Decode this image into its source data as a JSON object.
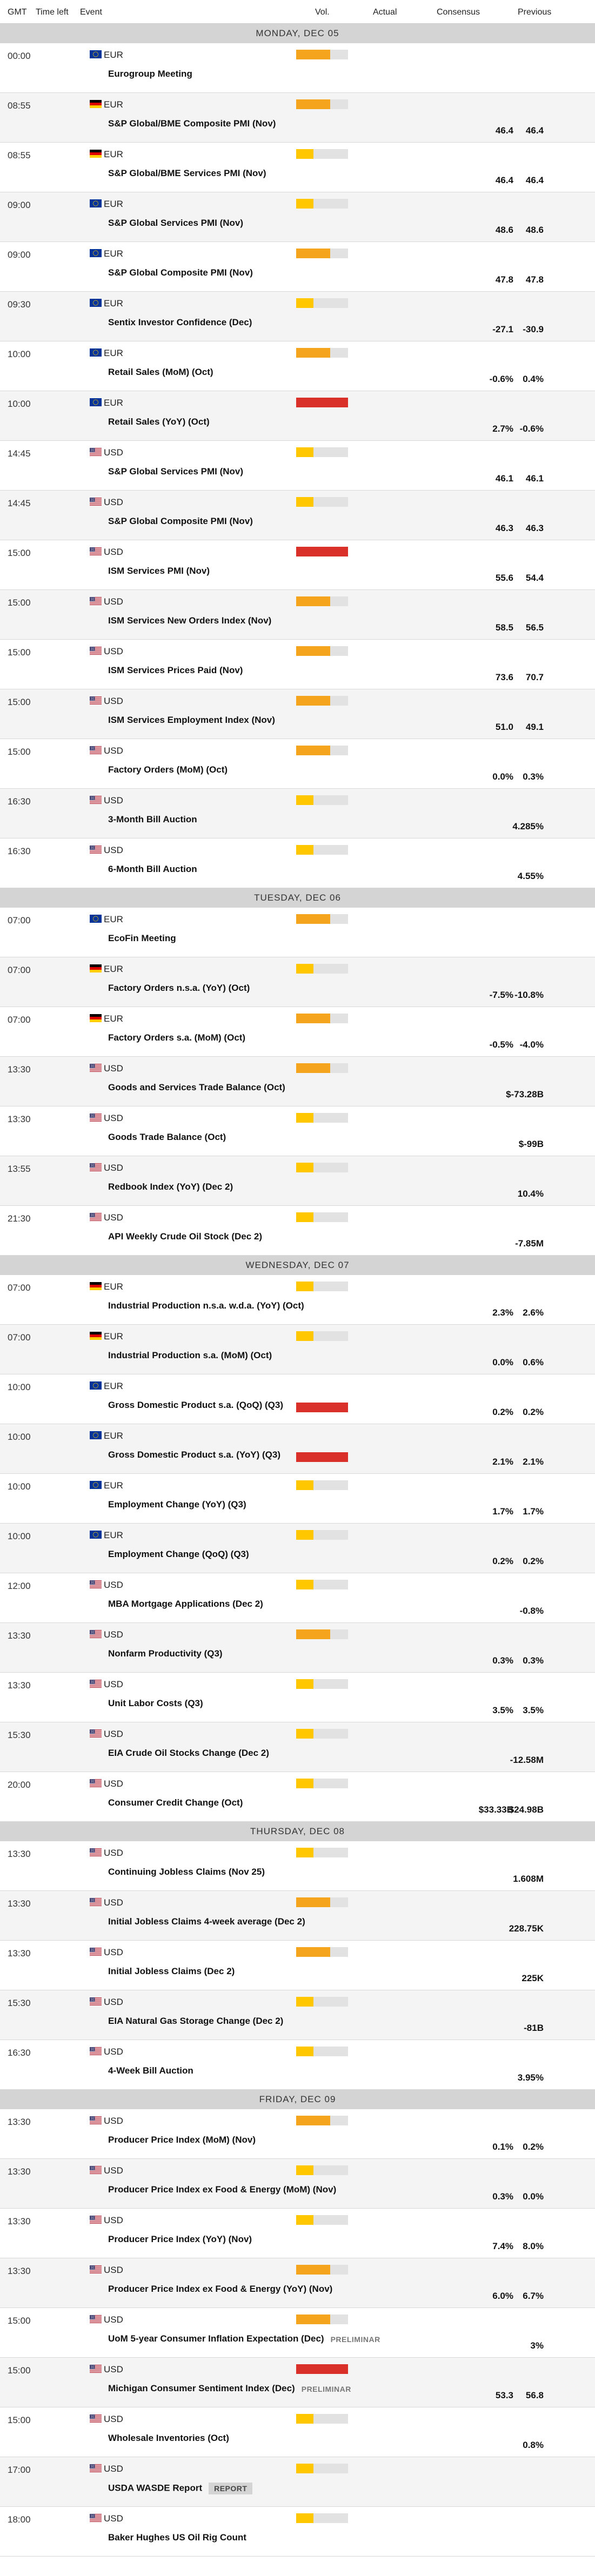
{
  "header": {
    "gmt": "GMT",
    "time_left": "Time left",
    "event": "Event",
    "vol": "Vol.",
    "actual": "Actual",
    "consensus": "Consensus",
    "previous": "Previous"
  },
  "colors": {
    "low": "#ffc700",
    "medium": "#f5a51d",
    "high": "#d9312a",
    "empty": "#e2e2e2",
    "day_header": "#d4d4d4"
  },
  "volatility_fill": {
    "low": 0.33,
    "medium": 0.66,
    "high": 1.0
  },
  "days": [
    {
      "label": "MONDAY, DEC 05",
      "events": [
        {
          "time": "00:00",
          "currency": "EUR",
          "flag": "eu",
          "name": "Eurogroup Meeting",
          "vol": "medium",
          "consensus": "",
          "previous": "",
          "tag": ""
        },
        {
          "time": "08:55",
          "currency": "EUR",
          "flag": "de",
          "name": "S&P Global/BME Composite PMI (Nov)",
          "vol": "medium",
          "consensus": "46.4",
          "previous": "46.4",
          "tag": ""
        },
        {
          "time": "08:55",
          "currency": "EUR",
          "flag": "de",
          "name": "S&P Global/BME Services PMI (Nov)",
          "vol": "low",
          "consensus": "46.4",
          "previous": "46.4",
          "tag": ""
        },
        {
          "time": "09:00",
          "currency": "EUR",
          "flag": "eu",
          "name": "S&P Global Services PMI (Nov)",
          "vol": "low",
          "consensus": "48.6",
          "previous": "48.6",
          "tag": ""
        },
        {
          "time": "09:00",
          "currency": "EUR",
          "flag": "eu",
          "name": "S&P Global Composite PMI (Nov)",
          "vol": "medium",
          "consensus": "47.8",
          "previous": "47.8",
          "tag": ""
        },
        {
          "time": "09:30",
          "currency": "EUR",
          "flag": "eu",
          "name": "Sentix Investor Confidence (Dec)",
          "vol": "low",
          "consensus": "-27.1",
          "previous": "-30.9",
          "tag": ""
        },
        {
          "time": "10:00",
          "currency": "EUR",
          "flag": "eu",
          "name": "Retail Sales (MoM) (Oct)",
          "vol": "medium",
          "consensus": "-0.6%",
          "previous": "0.4%",
          "tag": ""
        },
        {
          "time": "10:00",
          "currency": "EUR",
          "flag": "eu",
          "name": "Retail Sales (YoY) (Oct)",
          "vol": "high",
          "consensus": "2.7%",
          "previous": "-0.6%",
          "tag": ""
        },
        {
          "time": "14:45",
          "currency": "USD",
          "flag": "us",
          "name": "S&P Global Services PMI (Nov)",
          "vol": "low",
          "consensus": "46.1",
          "previous": "46.1",
          "tag": ""
        },
        {
          "time": "14:45",
          "currency": "USD",
          "flag": "us",
          "name": "S&P Global Composite PMI (Nov)",
          "vol": "low",
          "consensus": "46.3",
          "previous": "46.3",
          "tag": ""
        },
        {
          "time": "15:00",
          "currency": "USD",
          "flag": "us",
          "name": "ISM Services PMI (Nov)",
          "vol": "high",
          "consensus": "55.6",
          "previous": "54.4",
          "tag": ""
        },
        {
          "time": "15:00",
          "currency": "USD",
          "flag": "us",
          "name": "ISM Services New Orders Index (Nov)",
          "vol": "medium",
          "consensus": "58.5",
          "previous": "56.5",
          "tag": ""
        },
        {
          "time": "15:00",
          "currency": "USD",
          "flag": "us",
          "name": "ISM Services Prices Paid (Nov)",
          "vol": "medium",
          "consensus": "73.6",
          "previous": "70.7",
          "tag": ""
        },
        {
          "time": "15:00",
          "currency": "USD",
          "flag": "us",
          "name": "ISM Services Employment Index (Nov)",
          "vol": "medium",
          "consensus": "51.0",
          "previous": "49.1",
          "tag": ""
        },
        {
          "time": "15:00",
          "currency": "USD",
          "flag": "us",
          "name": "Factory Orders (MoM) (Oct)",
          "vol": "medium",
          "consensus": "0.0%",
          "previous": "0.3%",
          "tag": ""
        },
        {
          "time": "16:30",
          "currency": "USD",
          "flag": "us",
          "name": "3-Month Bill Auction",
          "vol": "low",
          "consensus": "",
          "previous": "4.285%",
          "tag": ""
        },
        {
          "time": "16:30",
          "currency": "USD",
          "flag": "us",
          "name": "6-Month Bill Auction",
          "vol": "low",
          "consensus": "",
          "previous": "4.55%",
          "tag": ""
        }
      ]
    },
    {
      "label": "TUESDAY, DEC 06",
      "events": [
        {
          "time": "07:00",
          "currency": "EUR",
          "flag": "eu",
          "name": "EcoFin Meeting",
          "vol": "medium",
          "consensus": "",
          "previous": "",
          "tag": ""
        },
        {
          "time": "07:00",
          "currency": "EUR",
          "flag": "de",
          "name": "Factory Orders n.s.a. (YoY) (Oct)",
          "vol": "low",
          "consensus": "-7.5%",
          "previous": "-10.8%",
          "tag": ""
        },
        {
          "time": "07:00",
          "currency": "EUR",
          "flag": "de",
          "name": "Factory Orders s.a. (MoM) (Oct)",
          "vol": "medium",
          "consensus": "-0.5%",
          "previous": "-4.0%",
          "tag": ""
        },
        {
          "time": "13:30",
          "currency": "USD",
          "flag": "us",
          "name": "Goods and Services Trade Balance (Oct)",
          "vol": "medium",
          "consensus": "",
          "previous": "$-73.28B",
          "tag": ""
        },
        {
          "time": "13:30",
          "currency": "USD",
          "flag": "us",
          "name": "Goods Trade Balance (Oct)",
          "vol": "low",
          "consensus": "",
          "previous": "$-99B",
          "tag": ""
        },
        {
          "time": "13:55",
          "currency": "USD",
          "flag": "us",
          "name": "Redbook Index (YoY) (Dec 2)",
          "vol": "low",
          "consensus": "",
          "previous": "10.4%",
          "tag": ""
        },
        {
          "time": "21:30",
          "currency": "USD",
          "flag": "us",
          "name": "API Weekly Crude Oil Stock (Dec 2)",
          "vol": "low",
          "consensus": "",
          "previous": "-7.85M",
          "tag": ""
        }
      ]
    },
    {
      "label": "WEDNESDAY, DEC 07",
      "events": [
        {
          "time": "07:00",
          "currency": "EUR",
          "flag": "de",
          "name": "Industrial Production n.s.a. w.d.a. (YoY) (Oct)",
          "vol": "low",
          "consensus": "2.3%",
          "previous": "2.6%",
          "tag": ""
        },
        {
          "time": "07:00",
          "currency": "EUR",
          "flag": "de",
          "name": "Industrial Production s.a. (MoM) (Oct)",
          "vol": "low",
          "consensus": "0.0%",
          "previous": "0.6%",
          "tag": ""
        },
        {
          "time": "10:00",
          "currency": "EUR",
          "flag": "eu",
          "name": "Gross Domestic Product s.a. (QoQ) (Q3)",
          "vol": "high",
          "consensus": "0.2%",
          "previous": "0.2%",
          "tag": ""
        },
        {
          "time": "10:00",
          "currency": "EUR",
          "flag": "eu",
          "name": "Gross Domestic Product s.a. (YoY) (Q3)",
          "vol": "high",
          "consensus": "2.1%",
          "previous": "2.1%",
          "tag": ""
        },
        {
          "time": "10:00",
          "currency": "EUR",
          "flag": "eu",
          "name": "Employment Change (YoY) (Q3)",
          "vol": "low",
          "consensus": "1.7%",
          "previous": "1.7%",
          "tag": ""
        },
        {
          "time": "10:00",
          "currency": "EUR",
          "flag": "eu",
          "name": "Employment Change (QoQ) (Q3)",
          "vol": "low",
          "consensus": "0.2%",
          "previous": "0.2%",
          "tag": ""
        },
        {
          "time": "12:00",
          "currency": "USD",
          "flag": "us",
          "name": "MBA Mortgage Applications (Dec 2)",
          "vol": "low",
          "consensus": "",
          "previous": "-0.8%",
          "tag": ""
        },
        {
          "time": "13:30",
          "currency": "USD",
          "flag": "us",
          "name": "Nonfarm Productivity (Q3)",
          "vol": "medium",
          "consensus": "0.3%",
          "previous": "0.3%",
          "tag": ""
        },
        {
          "time": "13:30",
          "currency": "USD",
          "flag": "us",
          "name": "Unit Labor Costs (Q3)",
          "vol": "low",
          "consensus": "3.5%",
          "previous": "3.5%",
          "tag": ""
        },
        {
          "time": "15:30",
          "currency": "USD",
          "flag": "us",
          "name": "EIA Crude Oil Stocks Change (Dec 2)",
          "vol": "low",
          "consensus": "",
          "previous": "-12.58M",
          "tag": ""
        },
        {
          "time": "20:00",
          "currency": "USD",
          "flag": "us",
          "name": "Consumer Credit Change (Oct)",
          "vol": "low",
          "consensus": "$33.33B",
          "previous": "$24.98B",
          "tag": ""
        }
      ]
    },
    {
      "label": "THURSDAY, DEC 08",
      "events": [
        {
          "time": "13:30",
          "currency": "USD",
          "flag": "us",
          "name": "Continuing Jobless Claims (Nov 25)",
          "vol": "low",
          "consensus": "",
          "previous": "1.608M",
          "tag": ""
        },
        {
          "time": "13:30",
          "currency": "USD",
          "flag": "us",
          "name": "Initial Jobless Claims 4-week average (Dec 2)",
          "vol": "medium",
          "consensus": "",
          "previous": "228.75K",
          "tag": ""
        },
        {
          "time": "13:30",
          "currency": "USD",
          "flag": "us",
          "name": "Initial Jobless Claims (Dec 2)",
          "vol": "medium",
          "consensus": "",
          "previous": "225K",
          "tag": ""
        },
        {
          "time": "15:30",
          "currency": "USD",
          "flag": "us",
          "name": "EIA Natural Gas Storage Change (Dec 2)",
          "vol": "low",
          "consensus": "",
          "previous": "-81B",
          "tag": ""
        },
        {
          "time": "16:30",
          "currency": "USD",
          "flag": "us",
          "name": "4-Week Bill Auction",
          "vol": "low",
          "consensus": "",
          "previous": "3.95%",
          "tag": ""
        }
      ]
    },
    {
      "label": "FRIDAY, DEC 09",
      "events": [
        {
          "time": "13:30",
          "currency": "USD",
          "flag": "us",
          "name": "Producer Price Index (MoM) (Nov)",
          "vol": "medium",
          "consensus": "0.1%",
          "previous": "0.2%",
          "tag": ""
        },
        {
          "time": "13:30",
          "currency": "USD",
          "flag": "us",
          "name": "Producer Price Index ex Food & Energy (MoM) (Nov)",
          "vol": "low",
          "consensus": "0.3%",
          "previous": "0.0%",
          "tag": ""
        },
        {
          "time": "13:30",
          "currency": "USD",
          "flag": "us",
          "name": "Producer Price Index (YoY) (Nov)",
          "vol": "low",
          "consensus": "7.4%",
          "previous": "8.0%",
          "tag": ""
        },
        {
          "time": "13:30",
          "currency": "USD",
          "flag": "us",
          "name": "Producer Price Index ex Food & Energy (YoY) (Nov)",
          "vol": "medium",
          "consensus": "6.0%",
          "previous": "6.7%",
          "tag": ""
        },
        {
          "time": "15:00",
          "currency": "USD",
          "flag": "us",
          "name": "UoM 5-year Consumer Inflation Expectation (Dec)",
          "vol": "medium",
          "consensus": "",
          "previous": "3%",
          "tag": "PRELIMINAR"
        },
        {
          "time": "15:00",
          "currency": "USD",
          "flag": "us",
          "name": "Michigan Consumer Sentiment Index (Dec)",
          "vol": "high",
          "consensus": "53.3",
          "previous": "56.8",
          "tag": "PRELIMINAR"
        },
        {
          "time": "15:00",
          "currency": "USD",
          "flag": "us",
          "name": "Wholesale Inventories (Oct)",
          "vol": "low",
          "consensus": "",
          "previous": "0.8%",
          "tag": ""
        },
        {
          "time": "17:00",
          "currency": "USD",
          "flag": "us",
          "name": "USDA WASDE Report",
          "vol": "low",
          "consensus": "",
          "previous": "",
          "tag": "REPORT"
        },
        {
          "time": "18:00",
          "currency": "USD",
          "flag": "us",
          "name": "Baker Hughes US Oil Rig Count",
          "vol": "low",
          "consensus": "",
          "previous": "",
          "tag": ""
        }
      ]
    }
  ]
}
